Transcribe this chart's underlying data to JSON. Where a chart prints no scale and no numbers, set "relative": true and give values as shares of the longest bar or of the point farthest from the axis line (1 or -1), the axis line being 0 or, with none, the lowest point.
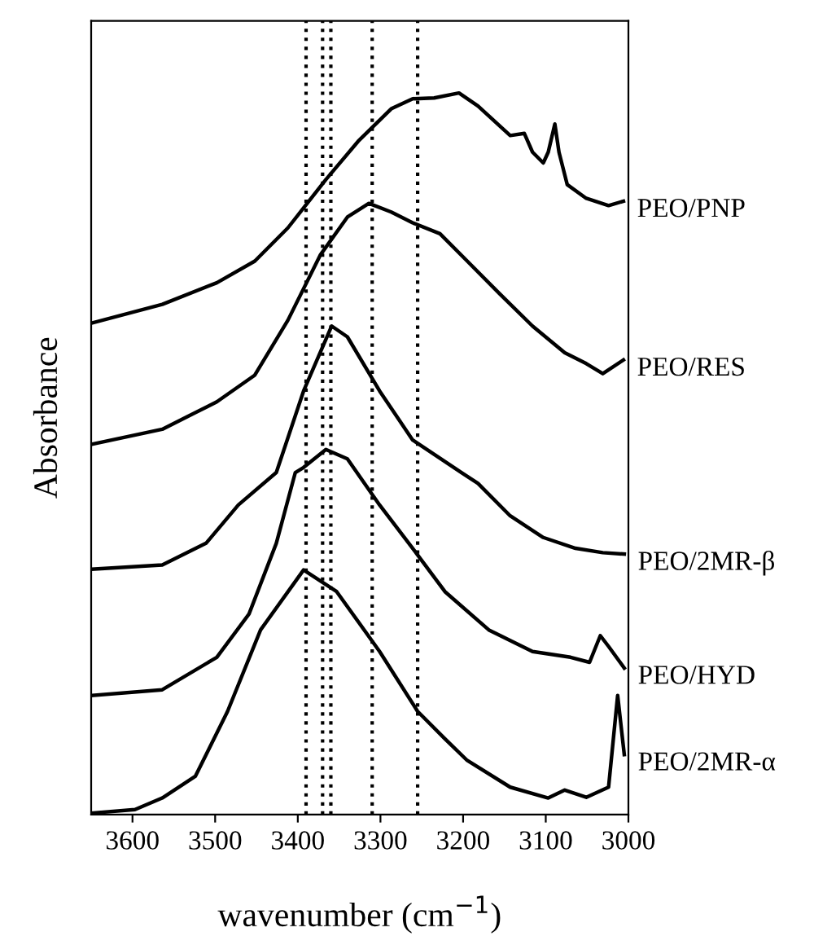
{
  "chart_data": {
    "type": "line",
    "relative": true,
    "xlabel": "wavenumber (cm$^{−1}$)",
    "ylabel": "Absorbance",
    "xlim": [
      3650,
      3000
    ],
    "xticks": [
      3600,
      3500,
      3400,
      3300,
      3200,
      3100,
      3000
    ],
    "grid": false,
    "legend": false,
    "marker": "none",
    "line_style": "solid",
    "ref_lines": [
      {
        "axis": "x",
        "value": 3390,
        "color": "#000000",
        "line_style": "dotted"
      },
      {
        "axis": "x",
        "value": 3370,
        "color": "#000000",
        "line_style": "dotted"
      },
      {
        "axis": "x",
        "value": 3360,
        "color": "#000000",
        "line_style": "dotted"
      },
      {
        "axis": "x",
        "value": 3310,
        "color": "#000000",
        "line_style": "dotted"
      },
      {
        "axis": "x",
        "value": 3255,
        "color": "#000000",
        "line_style": "dotted"
      }
    ],
    "series": [
      {
        "name": "PEO/PNP",
        "color": "#000000",
        "x": [
          3650,
          3564,
          3498,
          3452,
          3412,
          3366,
          3327,
          3287,
          3261,
          3235,
          3205,
          3182,
          3143,
          3126,
          3116,
          3103,
          3097,
          3089,
          3084,
          3074,
          3051,
          3024,
          3006
        ],
        "values": [
          0.681,
          0.707,
          0.737,
          0.767,
          0.813,
          0.88,
          0.933,
          0.978,
          0.992,
          0.993,
          1,
          0.982,
          0.941,
          0.944,
          0.918,
          0.903,
          0.918,
          0.957,
          0.918,
          0.873,
          0.854,
          0.844,
          0.85
        ]
      },
      {
        "name": "PEO/RES",
        "color": "#000000",
        "x": [
          3650,
          3564,
          3498,
          3452,
          3412,
          3373,
          3340,
          3314,
          3287,
          3261,
          3228,
          3195,
          3156,
          3116,
          3077,
          3051,
          3031,
          3006
        ],
        "values": [
          0.513,
          0.534,
          0.572,
          0.609,
          0.685,
          0.775,
          0.828,
          0.847,
          0.835,
          0.82,
          0.805,
          0.767,
          0.722,
          0.677,
          0.64,
          0.625,
          0.611,
          0.63
        ]
      },
      {
        "name": "PEO/2MR-β",
        "color": "#000000",
        "x": [
          3650,
          3564,
          3511,
          3472,
          3426,
          3393,
          3359,
          3340,
          3301,
          3261,
          3202,
          3182,
          3143,
          3103,
          3064,
          3031,
          3005
        ],
        "values": [
          0.34,
          0.346,
          0.376,
          0.429,
          0.474,
          0.587,
          0.677,
          0.662,
          0.587,
          0.519,
          0.474,
          0.459,
          0.414,
          0.384,
          0.369,
          0.363,
          0.361
        ]
      },
      {
        "name": "PEO/HYD",
        "color": "#000000",
        "x": [
          3649,
          3564,
          3498,
          3459,
          3426,
          3403,
          3393,
          3366,
          3340,
          3301,
          3261,
          3222,
          3169,
          3116,
          3070,
          3047,
          3034,
          3024,
          3005
        ],
        "values": [
          0.165,
          0.173,
          0.218,
          0.278,
          0.376,
          0.474,
          0.481,
          0.506,
          0.493,
          0.429,
          0.369,
          0.309,
          0.256,
          0.226,
          0.218,
          0.211,
          0.248,
          0.233,
          0.203
        ]
      },
      {
        "name": "PEO/2MR-α",
        "color": "#000000",
        "x": [
          3650,
          3597,
          3564,
          3524,
          3485,
          3445,
          3393,
          3353,
          3301,
          3255,
          3222,
          3195,
          3143,
          3097,
          3077,
          3051,
          3024,
          3013,
          3005
        ],
        "values": [
          0.002,
          0.007,
          0.023,
          0.053,
          0.143,
          0.256,
          0.339,
          0.309,
          0.226,
          0.143,
          0.105,
          0.075,
          0.038,
          0.023,
          0.034,
          0.024,
          0.038,
          0.165,
          0.083
        ]
      }
    ]
  }
}
